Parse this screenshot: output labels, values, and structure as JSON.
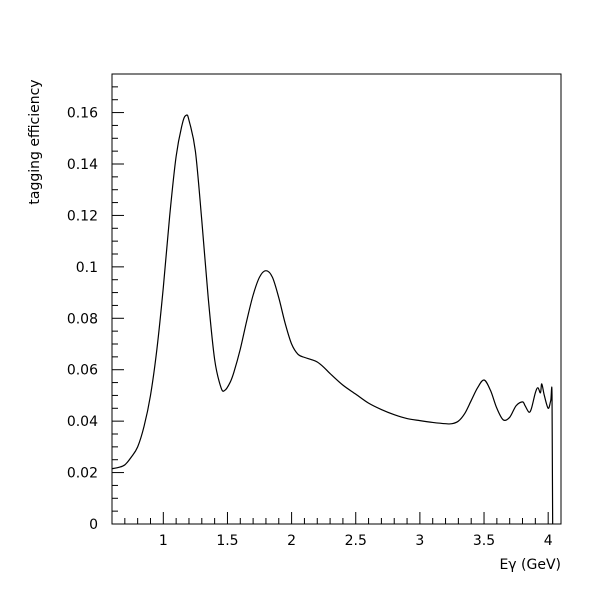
{
  "chart_data": {
    "type": "line",
    "xlabel": "Eγ (GeV)",
    "ylabel": "tagging efficiency",
    "xlim": [
      0.6,
      4.1
    ],
    "ylim": [
      0,
      0.175
    ],
    "x_ticks": [
      1,
      1.5,
      2,
      2.5,
      3,
      3.5,
      4
    ],
    "x_tick_labels": [
      "1",
      "1.5",
      "2",
      "2.5",
      "3",
      "3.5",
      "4"
    ],
    "y_ticks": [
      0,
      0.02,
      0.04,
      0.06,
      0.08,
      0.1,
      0.12,
      0.14,
      0.16
    ],
    "y_tick_labels": [
      "0",
      "0.02",
      "0.04",
      "0.06",
      "0.08",
      "0.1",
      "0.12",
      "0.14",
      "0.16"
    ],
    "grid": false,
    "series": [
      {
        "x": [
          0.6,
          0.65,
          0.7,
          0.75,
          0.8,
          0.85,
          0.9,
          0.95,
          1.0,
          1.05,
          1.1,
          1.15,
          1.18,
          1.2,
          1.25,
          1.3,
          1.35,
          1.4,
          1.45,
          1.48,
          1.52,
          1.55,
          1.6,
          1.65,
          1.7,
          1.75,
          1.8,
          1.85,
          1.9,
          1.95,
          2.0,
          2.05,
          2.1,
          2.15,
          2.2,
          2.25,
          2.3,
          2.4,
          2.5,
          2.6,
          2.7,
          2.8,
          2.9,
          3.0,
          3.1,
          3.2,
          3.25,
          3.3,
          3.35,
          3.4,
          3.45,
          3.5,
          3.55,
          3.6,
          3.65,
          3.7,
          3.75,
          3.8,
          3.82,
          3.85,
          3.87,
          3.9,
          3.92,
          3.94,
          3.95,
          3.97,
          4.0,
          4.02,
          4.03,
          4.035
        ],
        "y": [
          0.0215,
          0.022,
          0.023,
          0.026,
          0.03,
          0.038,
          0.05,
          0.068,
          0.092,
          0.12,
          0.143,
          0.156,
          0.159,
          0.157,
          0.145,
          0.118,
          0.088,
          0.064,
          0.053,
          0.052,
          0.055,
          0.059,
          0.068,
          0.079,
          0.089,
          0.096,
          0.0985,
          0.096,
          0.088,
          0.078,
          0.07,
          0.066,
          0.0648,
          0.064,
          0.063,
          0.061,
          0.0585,
          0.054,
          0.0505,
          0.047,
          0.0445,
          0.0425,
          0.041,
          0.0402,
          0.0395,
          0.039,
          0.039,
          0.04,
          0.043,
          0.048,
          0.053,
          0.056,
          0.052,
          0.045,
          0.0405,
          0.0415,
          0.046,
          0.0475,
          0.046,
          0.0435,
          0.045,
          0.051,
          0.053,
          0.051,
          0.0545,
          0.05,
          0.045,
          0.048,
          0.05,
          0.0
        ]
      }
    ]
  }
}
